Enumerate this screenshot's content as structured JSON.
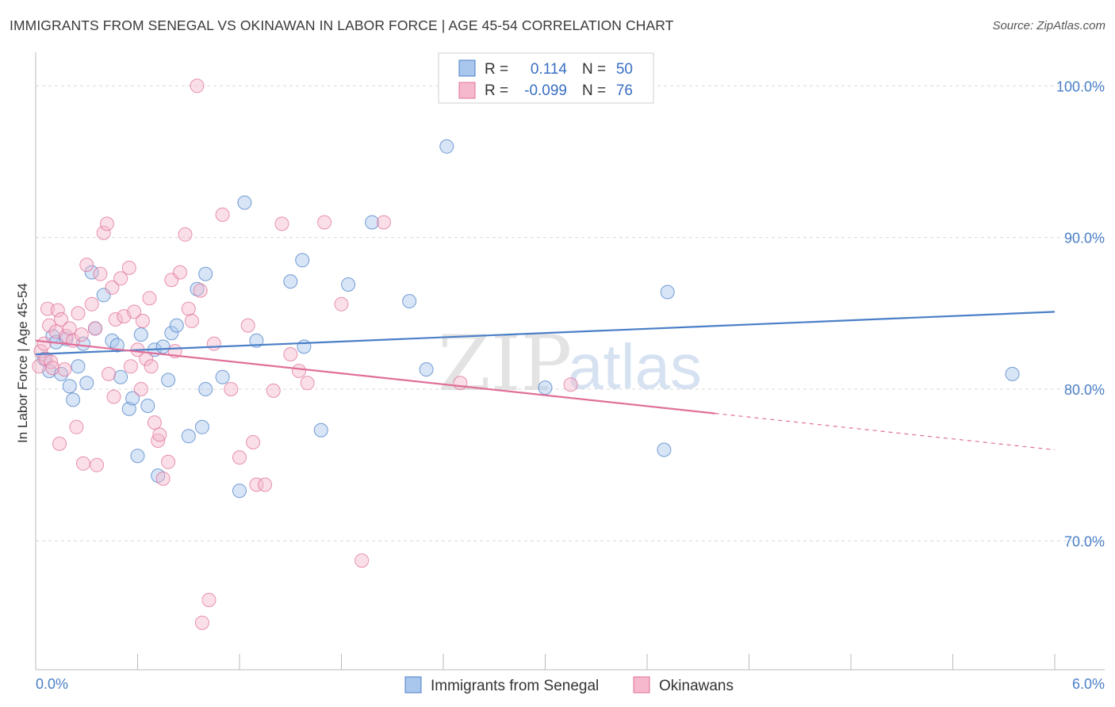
{
  "header": {
    "title": "IMMIGRANTS FROM SENEGAL VS OKINAWAN IN LABOR FORCE | AGE 45-54 CORRELATION CHART",
    "source": "Source: ZipAtlas.com"
  },
  "colors": {
    "blue": "#4a7fc7",
    "blue_fill": "#a9c6ec",
    "pink": "#e0709a",
    "pink_fill": "#f5b8cd",
    "grid": "#d9d9d9"
  },
  "legend": {
    "row1": {
      "r_label": "R =",
      "r_value": "0.114",
      "n_label": "N =",
      "n_value": "50"
    },
    "row2": {
      "r_label": "R =",
      "r_value": "-0.099",
      "n_label": "N =",
      "n_value": "76"
    }
  },
  "watermark": {
    "part1": "ZIP",
    "part2": "atlas"
  },
  "chart_data": {
    "type": "scatter",
    "title": "IMMIGRANTS FROM SENEGAL VS OKINAWAN IN LABOR FORCE | AGE 45-54 CORRELATION CHART",
    "xlabel": "",
    "ylabel": "In Labor Force | Age 45-54",
    "xlim": [
      0,
      6
    ],
    "ylim": [
      61.5,
      102
    ],
    "x_tick_labels": {
      "min": "0.0%",
      "max": "6.0%"
    },
    "y_ticks": [
      {
        "value": 100,
        "label": "100.0%"
      },
      {
        "value": 90,
        "label": "90.0%"
      },
      {
        "value": 80,
        "label": "80.0%"
      },
      {
        "value": 70,
        "label": "70.0%"
      }
    ],
    "series": [
      {
        "name": "Immigrants from Senegal",
        "color": "#4a7fc7",
        "trend": {
          "x0": 0.0,
          "y0": 82.3,
          "x1": 6.0,
          "y1": 85.1,
          "dashed_from": null
        },
        "points": [
          [
            0.05,
            82.0
          ],
          [
            0.08,
            81.2
          ],
          [
            0.1,
            83.5
          ],
          [
            0.12,
            83.1
          ],
          [
            0.15,
            81.0
          ],
          [
            0.18,
            83.3
          ],
          [
            0.2,
            80.2
          ],
          [
            0.22,
            79.3
          ],
          [
            0.25,
            81.5
          ],
          [
            0.3,
            80.4
          ],
          [
            0.33,
            87.7
          ],
          [
            0.35,
            84.0
          ],
          [
            0.4,
            86.2
          ],
          [
            0.45,
            83.2
          ],
          [
            0.5,
            80.8
          ],
          [
            0.55,
            78.7
          ],
          [
            0.57,
            79.4
          ],
          [
            0.6,
            75.6
          ],
          [
            0.62,
            83.6
          ],
          [
            0.66,
            78.9
          ],
          [
            0.7,
            82.6
          ],
          [
            0.72,
            74.3
          ],
          [
            0.78,
            80.6
          ],
          [
            0.8,
            83.7
          ],
          [
            0.83,
            84.2
          ],
          [
            0.9,
            76.9
          ],
          [
            0.95,
            86.6
          ],
          [
            0.98,
            77.5
          ],
          [
            1.0,
            87.6
          ],
          [
            1.1,
            80.8
          ],
          [
            1.2,
            73.3
          ],
          [
            1.23,
            92.3
          ],
          [
            1.5,
            87.1
          ],
          [
            1.57,
            88.5
          ],
          [
            1.58,
            82.8
          ],
          [
            1.68,
            77.3
          ],
          [
            1.84,
            86.9
          ],
          [
            1.98,
            91.0
          ],
          [
            2.2,
            85.8
          ],
          [
            2.3,
            81.3
          ],
          [
            2.42,
            96.0
          ],
          [
            3.0,
            80.1
          ],
          [
            3.7,
            76.0
          ],
          [
            3.72,
            86.4
          ],
          [
            5.75,
            81.0
          ],
          [
            0.28,
            83.0
          ],
          [
            0.48,
            82.9
          ],
          [
            0.75,
            82.8
          ],
          [
            1.0,
            80.0
          ],
          [
            1.3,
            83.2
          ]
        ]
      },
      {
        "name": "Okinawans",
        "color": "#e0709a",
        "trend": {
          "x0": 0.0,
          "y0": 83.2,
          "x1": 6.0,
          "y1": 76.0,
          "dashed_from": 4.0
        },
        "points": [
          [
            0.02,
            81.5
          ],
          [
            0.03,
            82.5
          ],
          [
            0.05,
            83.0
          ],
          [
            0.06,
            82.0
          ],
          [
            0.07,
            85.3
          ],
          [
            0.08,
            84.2
          ],
          [
            0.09,
            81.8
          ],
          [
            0.1,
            81.4
          ],
          [
            0.12,
            83.8
          ],
          [
            0.13,
            85.2
          ],
          [
            0.15,
            84.6
          ],
          [
            0.17,
            81.3
          ],
          [
            0.18,
            83.5
          ],
          [
            0.2,
            84.0
          ],
          [
            0.22,
            83.2
          ],
          [
            0.25,
            85.0
          ],
          [
            0.27,
            83.6
          ],
          [
            0.28,
            75.1
          ],
          [
            0.3,
            88.2
          ],
          [
            0.33,
            85.6
          ],
          [
            0.35,
            84.0
          ],
          [
            0.38,
            87.6
          ],
          [
            0.4,
            90.3
          ],
          [
            0.42,
            90.9
          ],
          [
            0.45,
            86.7
          ],
          [
            0.47,
            84.6
          ],
          [
            0.5,
            87.3
          ],
          [
            0.52,
            84.8
          ],
          [
            0.55,
            88.0
          ],
          [
            0.58,
            85.1
          ],
          [
            0.6,
            82.6
          ],
          [
            0.62,
            80.0
          ],
          [
            0.65,
            82.0
          ],
          [
            0.68,
            81.5
          ],
          [
            0.7,
            77.8
          ],
          [
            0.72,
            76.6
          ],
          [
            0.75,
            74.1
          ],
          [
            0.78,
            75.2
          ],
          [
            0.8,
            87.2
          ],
          [
            0.85,
            87.7
          ],
          [
            0.88,
            90.2
          ],
          [
            0.9,
            85.3
          ],
          [
            0.95,
            100.0
          ],
          [
            0.98,
            64.6
          ],
          [
            1.02,
            66.1
          ],
          [
            1.1,
            91.5
          ],
          [
            1.15,
            80.0
          ],
          [
            1.2,
            75.5
          ],
          [
            1.25,
            84.2
          ],
          [
            1.3,
            73.7
          ],
          [
            1.35,
            73.7
          ],
          [
            1.4,
            79.9
          ],
          [
            1.45,
            90.9
          ],
          [
            1.5,
            82.3
          ],
          [
            1.55,
            81.2
          ],
          [
            1.6,
            80.4
          ],
          [
            1.7,
            91.0
          ],
          [
            1.8,
            85.6
          ],
          [
            1.92,
            68.7
          ],
          [
            2.05,
            91.0
          ],
          [
            2.5,
            80.4
          ],
          [
            3.15,
            80.3
          ],
          [
            0.36,
            75.0
          ],
          [
            0.43,
            81.0
          ],
          [
            0.56,
            81.5
          ],
          [
            0.63,
            84.5
          ],
          [
            0.67,
            86.0
          ],
          [
            0.73,
            77.0
          ],
          [
            0.82,
            82.5
          ],
          [
            0.92,
            84.5
          ],
          [
            0.97,
            86.5
          ],
          [
            1.05,
            83.0
          ],
          [
            1.28,
            76.5
          ],
          [
            0.24,
            77.5
          ],
          [
            0.14,
            76.4
          ],
          [
            0.46,
            79.5
          ]
        ]
      }
    ]
  }
}
